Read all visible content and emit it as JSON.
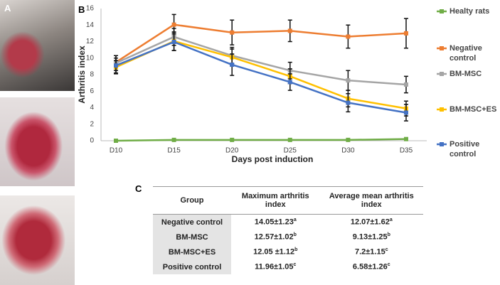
{
  "panels": {
    "a": "A",
    "b": "B",
    "c": "C"
  },
  "chart_data": {
    "type": "line",
    "xlabel": "Days post induction",
    "ylabel": "Arthritis index",
    "categories": [
      "D10",
      "D15",
      "D20",
      "D25",
      "D30",
      "D35"
    ],
    "ylim": [
      0,
      16
    ],
    "yticks": [
      0,
      2,
      4,
      6,
      8,
      10,
      12,
      14,
      16
    ],
    "legend": "right",
    "series": [
      {
        "name": "Healty rats",
        "color": "#70ad47",
        "values": [
          0,
          0.1,
          0.1,
          0.1,
          0.1,
          0.2
        ],
        "errors": [
          0,
          0,
          0,
          0,
          0,
          0
        ]
      },
      {
        "name": "Negative control",
        "color": "#ed7d31",
        "values": [
          9.5,
          14.05,
          13.1,
          13.3,
          12.6,
          13.0
        ],
        "errors": [
          0.8,
          1.23,
          1.5,
          1.3,
          1.4,
          1.8
        ]
      },
      {
        "name": "BM-MSC",
        "color": "#a5a5a5",
        "values": [
          9.4,
          12.57,
          10.3,
          8.5,
          7.3,
          6.8
        ],
        "errors": [
          0.9,
          1.02,
          1.0,
          1.0,
          1.2,
          1.0
        ]
      },
      {
        "name": "BM-MSC+ES",
        "color": "#ffc000",
        "values": [
          8.9,
          12.05,
          10.1,
          7.8,
          5.1,
          3.9
        ],
        "errors": [
          0.8,
          1.12,
          1.0,
          0.9,
          1.0,
          0.9
        ]
      },
      {
        "name": "Positive control",
        "color": "#4472c4",
        "values": [
          9.1,
          11.96,
          9.2,
          7.1,
          4.6,
          3.4
        ],
        "errors": [
          0.9,
          1.05,
          1.3,
          1.0,
          1.1,
          1.0
        ]
      }
    ]
  },
  "table": {
    "header": [
      "Group",
      "Maximum arthritis index",
      "Average mean arthritis index"
    ],
    "rows": [
      [
        "Negative control",
        {
          "text": "14.05±1.23",
          "sup": "a"
        },
        {
          "text": "12.07±1.62",
          "sup": "a"
        }
      ],
      [
        "BM-MSC",
        {
          "text": "12.57±1.02",
          "sup": "b"
        },
        {
          "text": "9.13±1.25",
          "sup": "b"
        }
      ],
      [
        "BM-MSC+ES",
        {
          "text": "12.05 ±1.12",
          "sup": "b"
        },
        {
          "text": "7.2±1.15",
          "sup": "c"
        }
      ],
      [
        "Positive control",
        {
          "text": "11.96±1.05",
          "sup": "c"
        },
        {
          "text": "6.58±1.26",
          "sup": "c"
        }
      ]
    ]
  }
}
